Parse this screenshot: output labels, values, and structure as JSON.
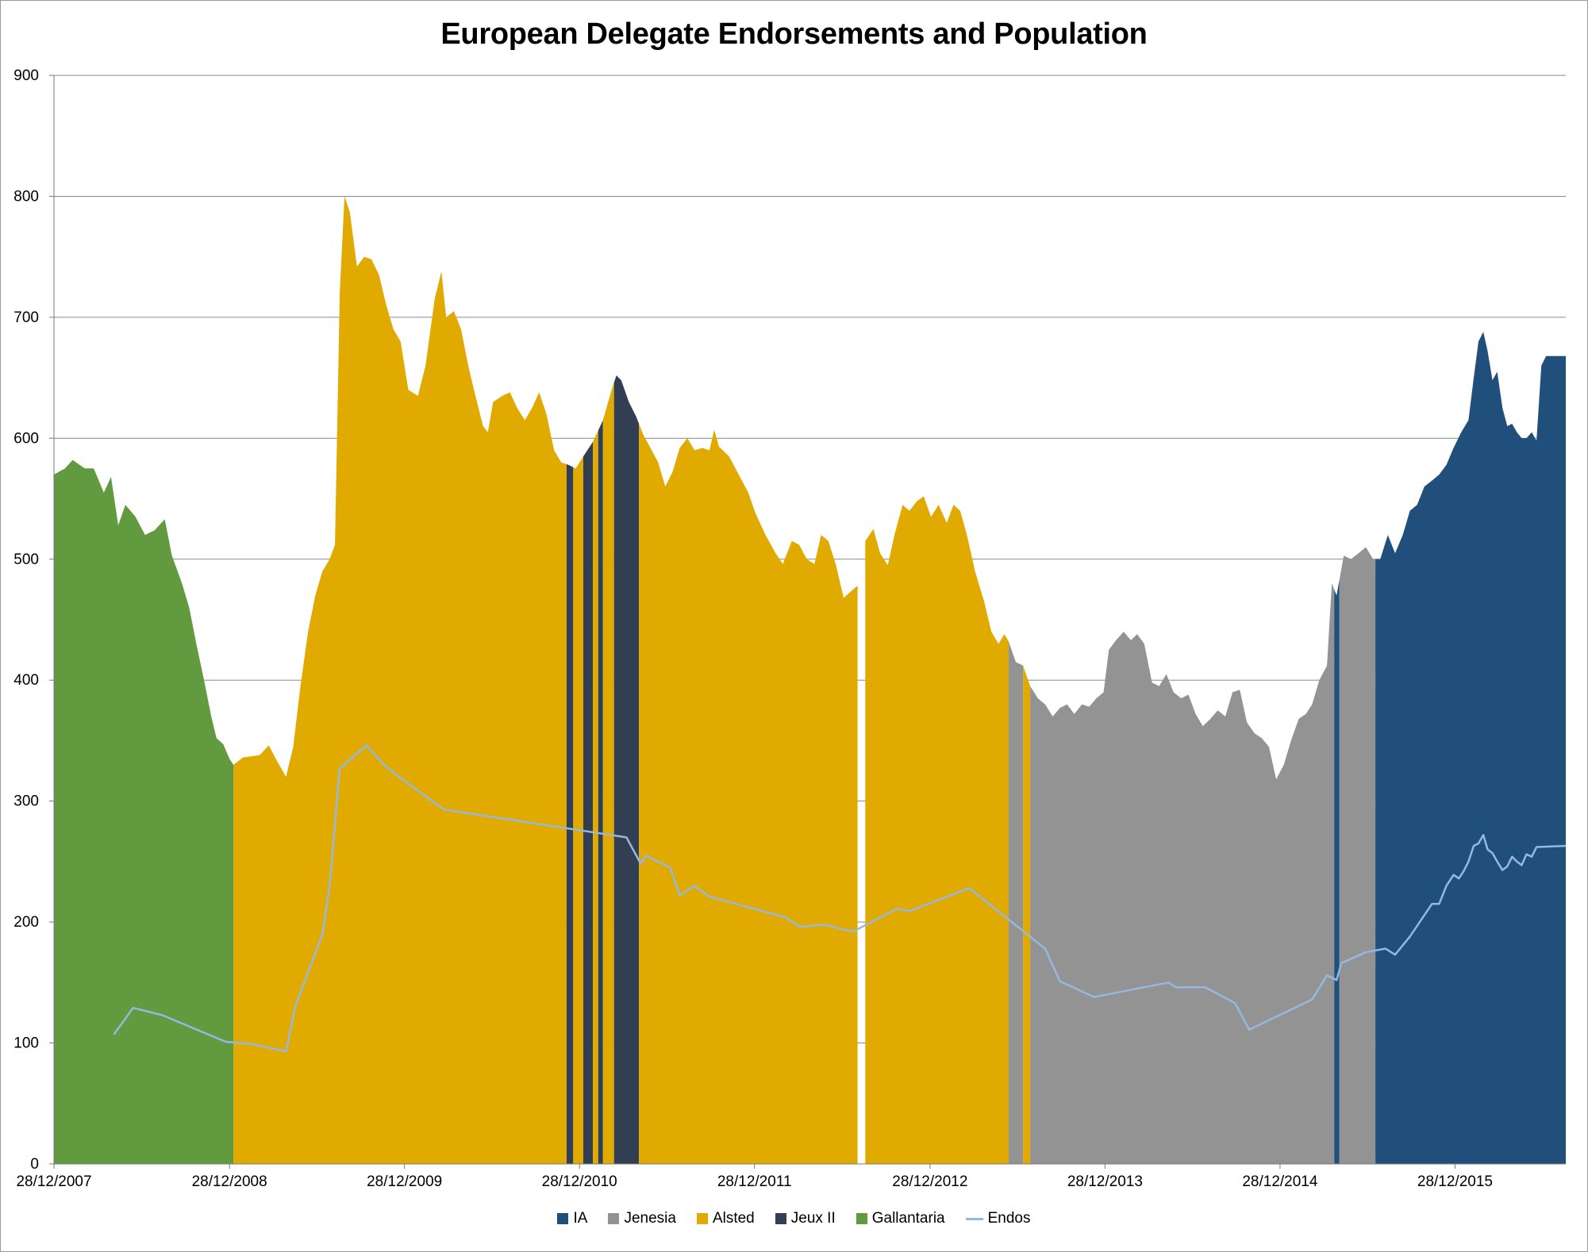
{
  "chart_data": {
    "type": "area",
    "title": "European Delegate Endorsements and Population",
    "ylim": [
      0,
      900
    ],
    "y_ticks": [
      0,
      100,
      200,
      300,
      400,
      500,
      600,
      700,
      800,
      900
    ],
    "x_ticks": [
      "28/12/2007",
      "28/12/2008",
      "28/12/2009",
      "28/12/2010",
      "28/12/2011",
      "28/12/2012",
      "28/12/2013",
      "28/12/2014",
      "28/12/2015"
    ],
    "xlim": [
      "2007-12-28",
      "2016-08-15"
    ],
    "grid": "horizontal",
    "legend_position": "bottom",
    "colors": {
      "IA": "#204f7b",
      "Jenesia": "#939393",
      "Alsted": "#e0aa00",
      "Jeux II": "#323e52",
      "Gallantaria": "#629a40",
      "Endos": "#95b8e0"
    },
    "legend": [
      "IA",
      "Jenesia",
      "Alsted",
      "Jeux II",
      "Gallantaria",
      "Endos"
    ],
    "population": [
      [
        "2007-12-28",
        570
      ],
      [
        "2008-01-20",
        575
      ],
      [
        "2008-02-05",
        582
      ],
      [
        "2008-03-01",
        575
      ],
      [
        "2008-03-20",
        575
      ],
      [
        "2008-04-10",
        555
      ],
      [
        "2008-04-25",
        568
      ],
      [
        "2008-05-10",
        528
      ],
      [
        "2008-05-25",
        545
      ],
      [
        "2008-06-15",
        535
      ],
      [
        "2008-07-05",
        520
      ],
      [
        "2008-07-25",
        524
      ],
      [
        "2008-08-15",
        533
      ],
      [
        "2008-08-30",
        503
      ],
      [
        "2008-09-20",
        480
      ],
      [
        "2008-10-05",
        460
      ],
      [
        "2008-10-20",
        430
      ],
      [
        "2008-11-05",
        400
      ],
      [
        "2008-11-20",
        370
      ],
      [
        "2008-12-01",
        352
      ],
      [
        "2008-12-15",
        347
      ],
      [
        "2008-12-28",
        335
      ],
      [
        "2009-01-05",
        330
      ],
      [
        "2009-01-15",
        333
      ],
      [
        "2009-01-25",
        336
      ],
      [
        "2009-03-01",
        338
      ],
      [
        "2009-03-20",
        346
      ],
      [
        "2009-04-05",
        334
      ],
      [
        "2009-04-25",
        320
      ],
      [
        "2009-05-10",
        345
      ],
      [
        "2009-05-25",
        395
      ],
      [
        "2009-06-10",
        440
      ],
      [
        "2009-06-25",
        470
      ],
      [
        "2009-07-10",
        490
      ],
      [
        "2009-07-25",
        500
      ],
      [
        "2009-08-05",
        512
      ],
      [
        "2009-08-15",
        720
      ],
      [
        "2009-08-25",
        800
      ],
      [
        "2009-09-05",
        787
      ],
      [
        "2009-09-20",
        742
      ],
      [
        "2009-10-05",
        750
      ],
      [
        "2009-10-20",
        748
      ],
      [
        "2009-11-05",
        735
      ],
      [
        "2009-11-20",
        710
      ],
      [
        "2009-12-05",
        690
      ],
      [
        "2009-12-20",
        680
      ],
      [
        "2010-01-05",
        640
      ],
      [
        "2010-01-25",
        635
      ],
      [
        "2010-02-10",
        660
      ],
      [
        "2010-03-01",
        715
      ],
      [
        "2010-03-15",
        738
      ],
      [
        "2010-03-25",
        700
      ],
      [
        "2010-04-10",
        705
      ],
      [
        "2010-04-25",
        690
      ],
      [
        "2010-05-10",
        660
      ],
      [
        "2010-05-25",
        635
      ],
      [
        "2010-06-10",
        610
      ],
      [
        "2010-06-20",
        605
      ],
      [
        "2010-07-01",
        630
      ],
      [
        "2010-07-20",
        635
      ],
      [
        "2010-08-05",
        638
      ],
      [
        "2010-08-20",
        625
      ],
      [
        "2010-09-05",
        615
      ],
      [
        "2010-09-20",
        625
      ],
      [
        "2010-10-05",
        638
      ],
      [
        "2010-10-20",
        620
      ],
      [
        "2010-11-05",
        590
      ],
      [
        "2010-11-20",
        580
      ],
      [
        "2010-12-05",
        578
      ],
      [
        "2010-12-20",
        575
      ],
      [
        "2011-01-05",
        585
      ],
      [
        "2011-01-25",
        597
      ],
      [
        "2011-02-15",
        615
      ],
      [
        "2011-03-05",
        640
      ],
      [
        "2011-03-15",
        652
      ],
      [
        "2011-03-25",
        648
      ],
      [
        "2011-04-10",
        630
      ],
      [
        "2011-04-25",
        618
      ],
      [
        "2011-05-10",
        603
      ],
      [
        "2011-05-25",
        592
      ],
      [
        "2011-06-10",
        580
      ],
      [
        "2011-06-25",
        560
      ],
      [
        "2011-07-10",
        572
      ],
      [
        "2011-07-25",
        592
      ],
      [
        "2011-08-10",
        600
      ],
      [
        "2011-08-25",
        590
      ],
      [
        "2011-09-10",
        592
      ],
      [
        "2011-09-25",
        590
      ],
      [
        "2011-10-05",
        607
      ],
      [
        "2011-10-15",
        593
      ],
      [
        "2011-11-05",
        585
      ],
      [
        "2011-11-25",
        570
      ],
      [
        "2011-12-15",
        555
      ],
      [
        "2011-12-30",
        538
      ],
      [
        "2012-01-20",
        520
      ],
      [
        "2012-02-10",
        505
      ],
      [
        "2012-02-25",
        496
      ],
      [
        "2012-03-15",
        515
      ],
      [
        "2012-03-30",
        512
      ],
      [
        "2012-04-15",
        500
      ],
      [
        "2012-05-01",
        496
      ],
      [
        "2012-05-15",
        520
      ],
      [
        "2012-05-30",
        515
      ],
      [
        "2012-06-15",
        495
      ],
      [
        "2012-07-01",
        468
      ],
      [
        "2012-07-15",
        473
      ],
      [
        "2012-07-30",
        478
      ],
      [
        "2012-08-15",
        515
      ],
      [
        "2012-09-01",
        525
      ],
      [
        "2012-09-15",
        505
      ],
      [
        "2012-10-01",
        495
      ],
      [
        "2012-10-15",
        520
      ],
      [
        "2012-11-01",
        545
      ],
      [
        "2012-11-15",
        540
      ],
      [
        "2012-12-01",
        548
      ],
      [
        "2012-12-15",
        552
      ],
      [
        "2012-12-30",
        535
      ],
      [
        "2013-01-15",
        545
      ],
      [
        "2013-02-01",
        530
      ],
      [
        "2013-02-15",
        545
      ],
      [
        "2013-03-01",
        540
      ],
      [
        "2013-03-15",
        520
      ],
      [
        "2013-04-01",
        490
      ],
      [
        "2013-04-20",
        465
      ],
      [
        "2013-05-05",
        440
      ],
      [
        "2013-05-20",
        430
      ],
      [
        "2013-06-01",
        438
      ],
      [
        "2013-06-10",
        432
      ],
      [
        "2013-06-25",
        415
      ],
      [
        "2013-07-10",
        412
      ],
      [
        "2013-07-25",
        395
      ],
      [
        "2013-08-10",
        385
      ],
      [
        "2013-08-25",
        380
      ],
      [
        "2013-09-10",
        370
      ],
      [
        "2013-09-25",
        377
      ],
      [
        "2013-10-10",
        380
      ],
      [
        "2013-10-25",
        372
      ],
      [
        "2013-11-10",
        380
      ],
      [
        "2013-11-25",
        378
      ],
      [
        "2013-12-10",
        385
      ],
      [
        "2013-12-25",
        390
      ],
      [
        "2014-01-05",
        425
      ],
      [
        "2014-01-20",
        433
      ],
      [
        "2014-02-05",
        440
      ],
      [
        "2014-02-20",
        433
      ],
      [
        "2014-03-05",
        438
      ],
      [
        "2014-03-20",
        430
      ],
      [
        "2014-04-05",
        398
      ],
      [
        "2014-04-20",
        395
      ],
      [
        "2014-05-05",
        405
      ],
      [
        "2014-05-20",
        390
      ],
      [
        "2014-06-05",
        385
      ],
      [
        "2014-06-20",
        388
      ],
      [
        "2014-07-05",
        372
      ],
      [
        "2014-07-20",
        362
      ],
      [
        "2014-08-05",
        368
      ],
      [
        "2014-08-20",
        375
      ],
      [
        "2014-09-05",
        370
      ],
      [
        "2014-09-20",
        390
      ],
      [
        "2014-10-05",
        392
      ],
      [
        "2014-10-20",
        365
      ],
      [
        "2014-11-05",
        356
      ],
      [
        "2014-11-20",
        352
      ],
      [
        "2014-12-05",
        345
      ],
      [
        "2014-12-20",
        318
      ],
      [
        "2015-01-05",
        330
      ],
      [
        "2015-01-20",
        350
      ],
      [
        "2015-02-05",
        368
      ],
      [
        "2015-02-20",
        372
      ],
      [
        "2015-03-05",
        380
      ],
      [
        "2015-03-20",
        400
      ],
      [
        "2015-04-05",
        412
      ],
      [
        "2015-04-15",
        480
      ],
      [
        "2015-04-25",
        470
      ],
      [
        "2015-05-10",
        503
      ],
      [
        "2015-05-25",
        500
      ],
      [
        "2015-06-10",
        505
      ],
      [
        "2015-06-25",
        510
      ],
      [
        "2015-07-10",
        500
      ],
      [
        "2015-07-25",
        500
      ],
      [
        "2015-08-10",
        520
      ],
      [
        "2015-08-25",
        505
      ],
      [
        "2015-09-10",
        520
      ],
      [
        "2015-09-25",
        540
      ],
      [
        "2015-10-10",
        545
      ],
      [
        "2015-10-25",
        560
      ],
      [
        "2015-11-10",
        565
      ],
      [
        "2015-11-25",
        570
      ],
      [
        "2015-12-10",
        578
      ],
      [
        "2015-12-25",
        592
      ],
      [
        "2016-01-10",
        605
      ],
      [
        "2016-01-25",
        615
      ],
      [
        "2016-02-05",
        650
      ],
      [
        "2016-02-15",
        680
      ],
      [
        "2016-02-25",
        688
      ],
      [
        "2016-03-05",
        672
      ],
      [
        "2016-03-15",
        648
      ],
      [
        "2016-03-25",
        655
      ],
      [
        "2016-04-05",
        625
      ],
      [
        "2016-04-15",
        610
      ],
      [
        "2016-04-25",
        612
      ],
      [
        "2016-05-05",
        605
      ],
      [
        "2016-05-15",
        600
      ],
      [
        "2016-05-25",
        600
      ],
      [
        "2016-06-05",
        605
      ],
      [
        "2016-06-15",
        598
      ],
      [
        "2016-06-25",
        660
      ],
      [
        "2016-07-05",
        668
      ],
      [
        "2016-08-15",
        668
      ]
    ],
    "delegates": [
      {
        "name": "Gallantaria",
        "from": "2007-12-28",
        "to": "2009-01-05"
      },
      {
        "name": "Alsted",
        "from": "2009-01-05",
        "to": "2010-12-01"
      },
      {
        "name": "Jeux II",
        "from": "2010-12-01",
        "to": "2010-12-15"
      },
      {
        "name": "Alsted",
        "from": "2010-12-15",
        "to": "2011-01-05"
      },
      {
        "name": "Jeux II",
        "from": "2011-01-05",
        "to": "2011-01-25"
      },
      {
        "name": "Alsted",
        "from": "2011-01-25",
        "to": "2011-02-05"
      },
      {
        "name": "Jeux II",
        "from": "2011-02-05",
        "to": "2011-02-15"
      },
      {
        "name": "Alsted",
        "from": "2011-02-15",
        "to": "2011-03-10"
      },
      {
        "name": "Jeux II",
        "from": "2011-03-10",
        "to": "2011-05-01"
      },
      {
        "name": "Alsted",
        "from": "2011-05-01",
        "to": "2012-07-30"
      },
      {
        "name": "Alsted",
        "from": "2012-08-15",
        "to": "2013-06-10"
      },
      {
        "name": "Jenesia",
        "from": "2013-06-10",
        "to": "2013-07-10"
      },
      {
        "name": "Alsted",
        "from": "2013-07-10",
        "to": "2013-07-25"
      },
      {
        "name": "Jenesia",
        "from": "2013-07-25",
        "to": "2015-04-20"
      },
      {
        "name": "IA",
        "from": "2015-04-20",
        "to": "2015-05-01"
      },
      {
        "name": "Jenesia",
        "from": "2015-05-01",
        "to": "2015-07-15"
      },
      {
        "name": "IA",
        "from": "2015-07-15",
        "to": "2016-08-15"
      }
    ],
    "endos": [
      [
        "2008-05-01",
        107
      ],
      [
        "2008-06-10",
        129
      ],
      [
        "2008-08-10",
        123
      ],
      [
        "2008-12-20",
        101
      ],
      [
        "2009-02-15",
        99
      ],
      [
        "2009-04-25",
        93
      ],
      [
        "2009-05-15",
        131
      ],
      [
        "2009-07-10",
        190
      ],
      [
        "2009-07-25",
        230
      ],
      [
        "2009-08-15",
        327
      ],
      [
        "2009-10-10",
        346
      ],
      [
        "2009-11-15",
        330
      ],
      [
        "2009-12-10",
        322
      ],
      [
        "2010-03-20",
        293
      ],
      [
        "2011-04-05",
        270
      ],
      [
        "2011-05-05",
        248
      ],
      [
        "2011-05-15",
        255
      ],
      [
        "2011-07-05",
        245
      ],
      [
        "2011-07-25",
        222
      ],
      [
        "2011-08-25",
        230
      ],
      [
        "2011-09-25",
        221
      ],
      [
        "2012-03-01",
        204
      ],
      [
        "2012-04-01",
        196
      ],
      [
        "2012-05-20",
        198
      ],
      [
        "2012-07-20",
        192
      ],
      [
        "2012-10-20",
        211
      ],
      [
        "2012-11-15",
        209
      ],
      [
        "2013-03-20",
        228
      ],
      [
        "2013-08-25",
        178
      ],
      [
        "2013-09-25",
        151
      ],
      [
        "2013-12-05",
        138
      ],
      [
        "2014-05-10",
        150
      ],
      [
        "2014-05-25",
        146
      ],
      [
        "2014-07-25",
        146
      ],
      [
        "2014-09-25",
        133
      ],
      [
        "2014-10-25",
        111
      ],
      [
        "2015-03-05",
        136
      ],
      [
        "2015-04-05",
        156
      ],
      [
        "2015-04-25",
        152
      ],
      [
        "2015-05-05",
        166
      ],
      [
        "2015-06-25",
        175
      ],
      [
        "2015-08-05",
        178
      ],
      [
        "2015-08-25",
        173
      ],
      [
        "2015-09-25",
        188
      ],
      [
        "2015-11-10",
        215
      ],
      [
        "2015-11-25",
        215
      ],
      [
        "2015-12-10",
        230
      ],
      [
        "2015-12-25",
        239
      ],
      [
        "2016-01-05",
        236
      ],
      [
        "2016-01-15",
        242
      ],
      [
        "2016-01-25",
        250
      ],
      [
        "2016-02-05",
        263
      ],
      [
        "2016-02-15",
        265
      ],
      [
        "2016-02-25",
        272
      ],
      [
        "2016-03-05",
        260
      ],
      [
        "2016-03-15",
        257
      ],
      [
        "2016-03-25",
        250
      ],
      [
        "2016-04-05",
        243
      ],
      [
        "2016-04-15",
        246
      ],
      [
        "2016-04-25",
        254
      ],
      [
        "2016-05-05",
        250
      ],
      [
        "2016-05-15",
        247
      ],
      [
        "2016-05-25",
        256
      ],
      [
        "2016-06-05",
        254
      ],
      [
        "2016-06-15",
        262
      ],
      [
        "2016-08-15",
        263
      ]
    ]
  }
}
